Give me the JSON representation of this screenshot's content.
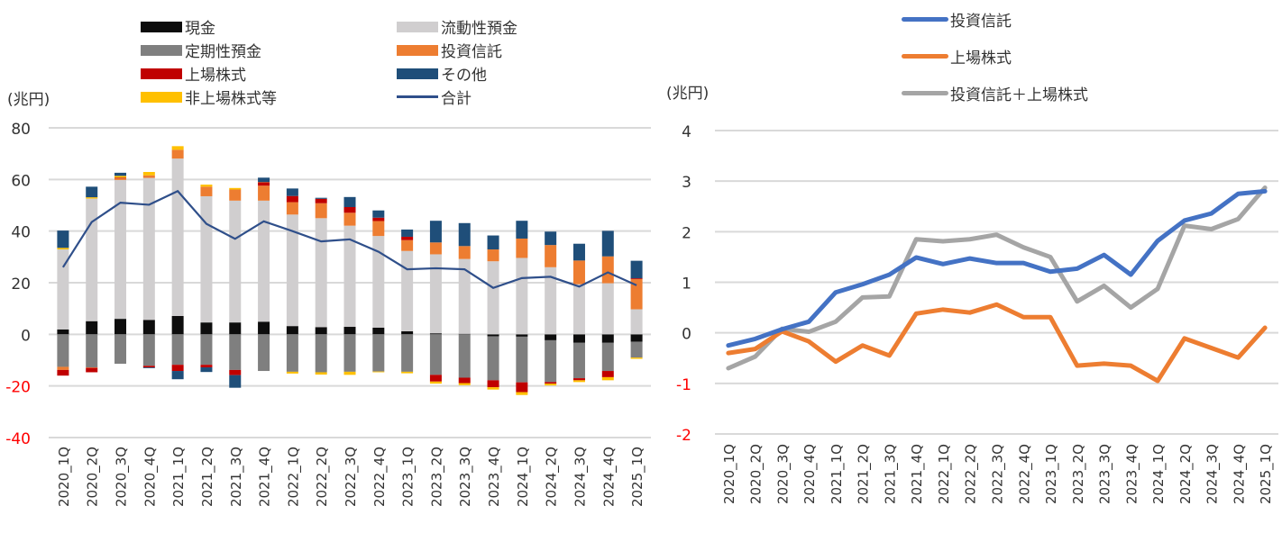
{
  "chart_data": [
    {
      "type": "bar",
      "subtype": "stacked-bar-with-line",
      "unit_label": "(兆円)",
      "ylim": [
        -40,
        80
      ],
      "yticks": [
        80,
        60,
        40,
        20,
        0,
        -20,
        -40
      ],
      "negative_tick_color": "#ff0000",
      "grid": true,
      "legend_position": "top",
      "categories": [
        "2020_1Q",
        "2020_2Q",
        "2020_3Q",
        "2020_4Q",
        "2021_1Q",
        "2021_2Q",
        "2021_3Q",
        "2021_4Q",
        "2022_1Q",
        "2022_2Q",
        "2022_3Q",
        "2022_4Q",
        "2023_1Q",
        "2023_2Q",
        "2023_3Q",
        "2023_4Q",
        "2024_1Q",
        "2024_2Q",
        "2024_3Q",
        "2024_4Q",
        "2025_1Q"
      ],
      "series": [
        {
          "name": "現金",
          "color": "#0d0d0d",
          "kind": "bar",
          "values": [
            1.9,
            5.1,
            6.0,
            5.6,
            7.1,
            4.6,
            4.6,
            4.9,
            3.2,
            2.8,
            2.9,
            2.6,
            1.2,
            0.4,
            0.2,
            -0.8,
            -0.9,
            -2.3,
            -3.3,
            -3.3,
            -2.9
          ]
        },
        {
          "name": "定期性預金",
          "color": "#7f7f7f",
          "kind": "bar",
          "values": [
            -12.6,
            -12.8,
            -11.4,
            -12.2,
            -11.8,
            -11.8,
            -13.8,
            -14.2,
            -14.5,
            -14.7,
            -14.5,
            -14.4,
            -14.5,
            -15.7,
            -16.8,
            -17.0,
            -17.7,
            -16.2,
            -13.7,
            -10.9,
            -6.1
          ]
        },
        {
          "name": "流動性預金",
          "color": "#d0cecf",
          "kind": "bar",
          "values": [
            31.0,
            47.5,
            53.8,
            55.0,
            61.0,
            48.9,
            47.2,
            46.9,
            43.2,
            42.2,
            39.2,
            35.5,
            31.1,
            30.6,
            29.0,
            28.3,
            29.6,
            26.0,
            19.4,
            19.8,
            9.7
          ]
        },
        {
          "name": "投資信託",
          "color": "#ed7d31",
          "kind": "bar",
          "values": [
            -1.2,
            -0.2,
            0.6,
            1.0,
            3.4,
            3.7,
            4.3,
            5.8,
            4.8,
            5.8,
            5.0,
            5.8,
            4.2,
            4.6,
            5.0,
            4.6,
            7.5,
            8.6,
            9.2,
            10.4,
            11.7
          ]
        },
        {
          "name": "上場株式",
          "color": "#c00000",
          "kind": "bar",
          "values": [
            -2.2,
            -1.7,
            0.3,
            -0.6,
            -2.4,
            -1.0,
            -2.0,
            1.3,
            2.4,
            1.7,
            2.2,
            1.3,
            1.3,
            -2.6,
            -2.1,
            -2.7,
            -3.8,
            -0.6,
            -0.8,
            -2.4,
            0.3
          ]
        },
        {
          "name": "非上場株式等",
          "color": "#ffc000",
          "kind": "bar",
          "values": [
            0.6,
            0.5,
            0.7,
            1.3,
            1.4,
            0.8,
            0.6,
            0.1,
            -0.7,
            -0.9,
            -1.2,
            -0.3,
            -0.6,
            -0.8,
            -0.8,
            -0.9,
            -1.1,
            -0.7,
            -0.7,
            -1.2,
            -0.5
          ]
        },
        {
          "name": "その他",
          "color": "#1f4e79",
          "kind": "bar",
          "values": [
            6.7,
            4.1,
            1.2,
            -0.3,
            -3.2,
            -1.8,
            -4.9,
            1.7,
            2.9,
            0.4,
            3.9,
            2.8,
            2.8,
            8.4,
            8.9,
            5.4,
            6.9,
            5.2,
            6.5,
            9.9,
            6.8
          ]
        },
        {
          "name": "合計",
          "color": "#2f4f8a",
          "kind": "line",
          "values": [
            26.0,
            43.5,
            51.0,
            50.2,
            55.5,
            42.8,
            37.0,
            43.8,
            40.0,
            36.0,
            36.8,
            32.0,
            25.2,
            25.6,
            25.2,
            18.0,
            21.8,
            22.3,
            18.5,
            24.0,
            19.0
          ]
        }
      ],
      "legend": [
        [
          "現金",
          "流動性預金"
        ],
        [
          "定期性預金",
          "投資信託"
        ],
        [
          "上場株式",
          "その他"
        ],
        [
          "非上場株式等",
          "合計"
        ]
      ],
      "title": "",
      "xlabel": "",
      "ylabel": "(兆円)"
    },
    {
      "type": "line",
      "unit_label": "(兆円)",
      "ylim": [
        -2,
        4
      ],
      "yticks": [
        4,
        3,
        2,
        1,
        0,
        -1,
        -2
      ],
      "negative_tick_color": "#ff0000",
      "grid": true,
      "legend_position": "top",
      "categories": [
        "2020_1Q",
        "2020_2Q",
        "2020_3Q",
        "2020_4Q",
        "2021_1Q",
        "2021_2Q",
        "2021_3Q",
        "2021_4Q",
        "2022_1Q",
        "2022_2Q",
        "2022_3Q",
        "2022_4Q",
        "2023_1Q",
        "2023_2Q",
        "2023_3Q",
        "2023_4Q",
        "2024_1Q",
        "2024_2Q",
        "2024_3Q",
        "2024_4Q",
        "2025_1Q"
      ],
      "series": [
        {
          "name": "投資信託",
          "color": "#4472c4",
          "values": [
            -0.25,
            -0.12,
            0.07,
            0.22,
            0.8,
            0.96,
            1.15,
            1.49,
            1.36,
            1.47,
            1.38,
            1.38,
            1.21,
            1.27,
            1.54,
            1.15,
            1.82,
            2.22,
            2.36,
            2.75,
            2.8
          ]
        },
        {
          "name": "上場株式",
          "color": "#ed7d31",
          "values": [
            -0.4,
            -0.32,
            0.03,
            -0.17,
            -0.57,
            -0.25,
            -0.45,
            0.38,
            0.46,
            0.4,
            0.56,
            0.31,
            0.31,
            -0.65,
            -0.61,
            -0.65,
            -0.95,
            -0.11,
            -0.3,
            -0.49,
            0.1
          ]
        },
        {
          "name": "投資信託＋上場株式",
          "color": "#a5a5a5",
          "values": [
            -0.7,
            -0.47,
            0.08,
            0.02,
            0.22,
            0.7,
            0.72,
            1.85,
            1.81,
            1.85,
            1.94,
            1.69,
            1.5,
            0.62,
            0.93,
            0.5,
            0.87,
            2.12,
            2.05,
            2.25,
            2.87
          ]
        }
      ],
      "legend": [
        "投資信託",
        "上場株式",
        "投資信託＋上場株式"
      ],
      "title": "",
      "xlabel": "",
      "ylabel": "(兆円)"
    }
  ]
}
